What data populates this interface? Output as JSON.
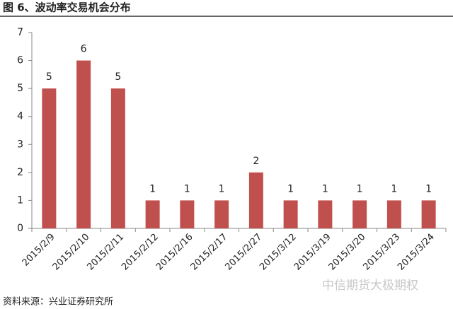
{
  "chart_data": {
    "type": "bar",
    "title": "图 6、波动率交易机会分布",
    "source": "资料来源：兴业证券研究所",
    "watermark": "中信期货大极期权",
    "categories": [
      "2015/2/9",
      "2015/2/10",
      "2015/2/11",
      "2015/2/12",
      "2015/2/16",
      "2015/2/17",
      "2015/2/27",
      "2015/3/12",
      "2015/3/19",
      "2015/3/20",
      "2015/3/23",
      "2015/3/24"
    ],
    "values": [
      5,
      6,
      5,
      1,
      1,
      1,
      2,
      1,
      1,
      1,
      1,
      1
    ],
    "color": "#c0504d",
    "ylim": [
      0,
      7
    ],
    "yticks": [
      0,
      1,
      2,
      3,
      4,
      5,
      6,
      7
    ],
    "grid": false
  }
}
